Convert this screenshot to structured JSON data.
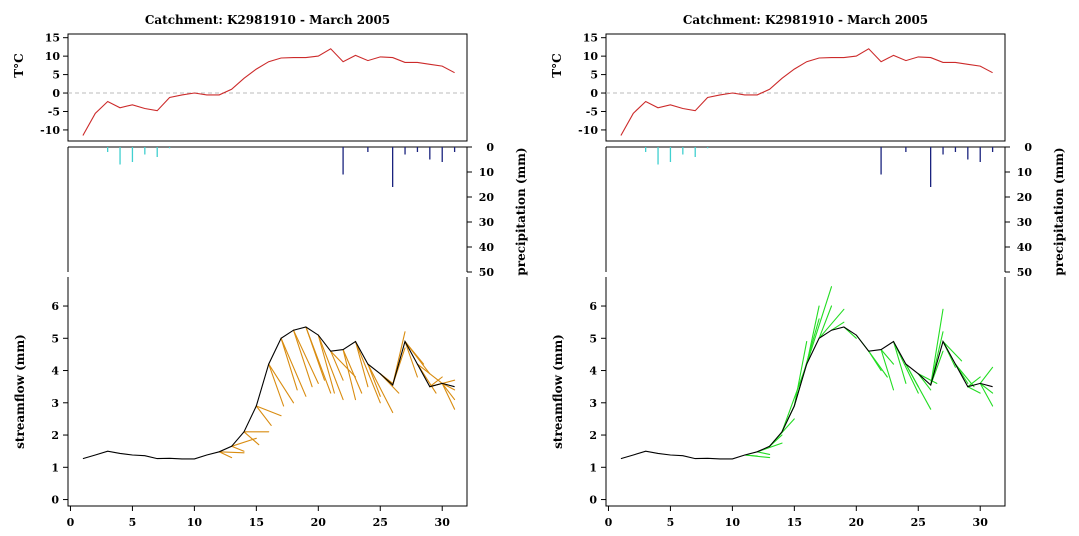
{
  "colors": {
    "temperature": "#cc2a2a",
    "zero_line": "#bbbbbb",
    "snow": "#40d0d0",
    "rain": "#1a237e",
    "observed": "#000000",
    "forecast_left": "#d98c10",
    "forecast_right": "#22dd22"
  },
  "chart_data": [
    {
      "type": "line",
      "title": "Catchment: K2981910 - March 2005",
      "panels": {
        "temperature": {
          "ylabel": "T°C",
          "ylim": [
            -13,
            16
          ],
          "yticks": [
            15,
            10,
            5,
            0,
            -5,
            -10
          ],
          "x": [
            1,
            2,
            3,
            4,
            5,
            6,
            7,
            8,
            9,
            10,
            11,
            12,
            13,
            14,
            15,
            16,
            17,
            18,
            19,
            20,
            21,
            22,
            23,
            24,
            25,
            26,
            27,
            28,
            29,
            30,
            31
          ],
          "values": [
            -11.5,
            -5.5,
            -2.3,
            -4,
            -3.2,
            -4.2,
            -4.8,
            -1.2,
            -0.5,
            0,
            -0.5,
            -0.5,
            1,
            4,
            6.5,
            8.5,
            9.5,
            9.6,
            9.6,
            10,
            12,
            8.5,
            10.2,
            8.8,
            9.8,
            9.6,
            8.3,
            8.3,
            7.8,
            7.3,
            5.5
          ]
        },
        "precipitation": {
          "ylabel": "precipitation (mm)",
          "ylim": [
            0,
            50
          ],
          "yticks": [
            0,
            10,
            20,
            30,
            40,
            50
          ],
          "snow": [
            {
              "x": 3,
              "v": 2
            },
            {
              "x": 4,
              "v": 7
            },
            {
              "x": 5,
              "v": 6
            },
            {
              "x": 6,
              "v": 3
            },
            {
              "x": 7,
              "v": 4
            },
            {
              "x": 8,
              "v": 0.5
            }
          ],
          "rain": [
            {
              "x": 22,
              "v": 11
            },
            {
              "x": 24,
              "v": 2
            },
            {
              "x": 26,
              "v": 16
            },
            {
              "x": 27,
              "v": 3
            },
            {
              "x": 28,
              "v": 2
            },
            {
              "x": 29,
              "v": 5
            },
            {
              "x": 30,
              "v": 6
            },
            {
              "x": 31,
              "v": 2
            }
          ]
        },
        "streamflow": {
          "ylabel": "streamflow (mm)",
          "ylim": [
            -0.2,
            6.9
          ],
          "yticks": [
            0,
            1,
            2,
            3,
            4,
            5,
            6
          ],
          "x": [
            1,
            2,
            3,
            4,
            5,
            6,
            7,
            8,
            9,
            10,
            11,
            12,
            13,
            14,
            15,
            16,
            17,
            18,
            19,
            20,
            21,
            22,
            23,
            24,
            25,
            26,
            27,
            28,
            29,
            30,
            31
          ],
          "observed": [
            1.27,
            1.38,
            1.5,
            1.43,
            1.38,
            1.36,
            1.27,
            1.28,
            1.26,
            1.26,
            1.38,
            1.48,
            1.65,
            2.1,
            2.9,
            4.2,
            5,
            5.25,
            5.35,
            5.1,
            4.6,
            4.65,
            4.9,
            4.2,
            3.9,
            3.55,
            4.9,
            4.2,
            3.5,
            3.6,
            3.5
          ],
          "forecasts": [
            {
              "x0": 12,
              "y0": 1.48,
              "x1": 13,
              "y1": 1.3
            },
            {
              "x0": 12,
              "y0": 1.48,
              "x1": 14,
              "y1": 1.45
            },
            {
              "x0": 13,
              "y0": 1.65,
              "x1": 14,
              "y1": 1.5
            },
            {
              "x0": 13,
              "y0": 1.65,
              "x1": 15,
              "y1": 1.9
            },
            {
              "x0": 14,
              "y0": 2.1,
              "x1": 15.2,
              "y1": 1.7
            },
            {
              "x0": 14,
              "y0": 2.1,
              "x1": 16,
              "y1": 2.1
            },
            {
              "x0": 15,
              "y0": 2.9,
              "x1": 16.2,
              "y1": 2.3
            },
            {
              "x0": 15,
              "y0": 2.9,
              "x1": 17,
              "y1": 2.6
            },
            {
              "x0": 16,
              "y0": 4.2,
              "x1": 17.2,
              "y1": 2.9
            },
            {
              "x0": 16,
              "y0": 4.2,
              "x1": 18,
              "y1": 3
            },
            {
              "x0": 17,
              "y0": 5,
              "x1": 18.3,
              "y1": 3.4
            },
            {
              "x0": 17,
              "y0": 5,
              "x1": 19,
              "y1": 3.2
            },
            {
              "x0": 18,
              "y0": 5.25,
              "x1": 19.5,
              "y1": 3.5
            },
            {
              "x0": 18,
              "y0": 5.25,
              "x1": 20,
              "y1": 3.6
            },
            {
              "x0": 19,
              "y0": 5.35,
              "x1": 20.5,
              "y1": 3.7
            },
            {
              "x0": 19,
              "y0": 5.35,
              "x1": 21,
              "y1": 3.3
            },
            {
              "x0": 20,
              "y0": 5.1,
              "x1": 21.3,
              "y1": 3.3
            },
            {
              "x0": 20,
              "y0": 5.1,
              "x1": 22,
              "y1": 3.1
            },
            {
              "x0": 21,
              "y0": 4.6,
              "x1": 22,
              "y1": 3.7
            },
            {
              "x0": 21,
              "y0": 4.6,
              "x1": 23,
              "y1": 3.8
            },
            {
              "x0": 22,
              "y0": 4.65,
              "x1": 23,
              "y1": 3.1
            },
            {
              "x0": 22,
              "y0": 4.65,
              "x1": 23.5,
              "y1": 3.3
            },
            {
              "x0": 23,
              "y0": 4.9,
              "x1": 24,
              "y1": 3.5
            },
            {
              "x0": 23,
              "y0": 4.9,
              "x1": 25,
              "y1": 3
            },
            {
              "x0": 24,
              "y0": 4.2,
              "x1": 25,
              "y1": 3.2
            },
            {
              "x0": 24,
              "y0": 4.2,
              "x1": 26,
              "y1": 2.7
            },
            {
              "x0": 25,
              "y0": 3.9,
              "x1": 26,
              "y1": 3.6
            },
            {
              "x0": 25,
              "y0": 3.9,
              "x1": 26.5,
              "y1": 3.3
            },
            {
              "x0": 26,
              "y0": 3.55,
              "x1": 27,
              "y1": 5.2
            },
            {
              "x0": 26,
              "y0": 3.55,
              "x1": 27,
              "y1": 4.7
            },
            {
              "x0": 27,
              "y0": 4.9,
              "x1": 28,
              "y1": 3.8
            },
            {
              "x0": 27,
              "y0": 4.9,
              "x1": 29,
              "y1": 3.9
            },
            {
              "x0": 27,
              "y0": 4.9,
              "x1": 28.5,
              "y1": 4.2
            },
            {
              "x0": 28,
              "y0": 4.2,
              "x1": 29.5,
              "y1": 3.3
            },
            {
              "x0": 28,
              "y0": 4.2,
              "x1": 30,
              "y1": 3.6
            },
            {
              "x0": 29,
              "y0": 3.5,
              "x1": 30,
              "y1": 3.8
            },
            {
              "x0": 29,
              "y0": 3.5,
              "x1": 31,
              "y1": 3.7
            },
            {
              "x0": 30,
              "y0": 3.6,
              "x1": 31,
              "y1": 3.1
            },
            {
              "x0": 30,
              "y0": 3.6,
              "x1": 31,
              "y1": 2.8
            },
            {
              "x0": 30,
              "y0": 3.6,
              "x1": 31,
              "y1": 3.4
            }
          ]
        }
      },
      "xticks": [
        0,
        5,
        10,
        15,
        20,
        25,
        30
      ],
      "xlim": [
        -0.2,
        32
      ]
    },
    {
      "type": "line",
      "title": "Catchment: K2981910 - March 2005",
      "panels": {
        "temperature": {
          "ylabel": "T°C",
          "ylim": [
            -13,
            16
          ],
          "yticks": [
            15,
            10,
            5,
            0,
            -5,
            -10
          ],
          "x": [
            1,
            2,
            3,
            4,
            5,
            6,
            7,
            8,
            9,
            10,
            11,
            12,
            13,
            14,
            15,
            16,
            17,
            18,
            19,
            20,
            21,
            22,
            23,
            24,
            25,
            26,
            27,
            28,
            29,
            30,
            31
          ],
          "values": [
            -11.5,
            -5.5,
            -2.3,
            -4,
            -3.2,
            -4.2,
            -4.8,
            -1.2,
            -0.5,
            0,
            -0.5,
            -0.5,
            1,
            4,
            6.5,
            8.5,
            9.5,
            9.6,
            9.6,
            10,
            12,
            8.5,
            10.2,
            8.8,
            9.8,
            9.6,
            8.3,
            8.3,
            7.8,
            7.3,
            5.5
          ]
        },
        "precipitation": {
          "ylabel": "precipitation (mm)",
          "ylim": [
            0,
            50
          ],
          "yticks": [
            0,
            10,
            20,
            30,
            40,
            50
          ],
          "snow": [
            {
              "x": 3,
              "v": 2
            },
            {
              "x": 4,
              "v": 7
            },
            {
              "x": 5,
              "v": 6
            },
            {
              "x": 6,
              "v": 3
            },
            {
              "x": 7,
              "v": 4
            },
            {
              "x": 8,
              "v": 0.5
            }
          ],
          "rain": [
            {
              "x": 22,
              "v": 11
            },
            {
              "x": 24,
              "v": 2
            },
            {
              "x": 26,
              "v": 16
            },
            {
              "x": 27,
              "v": 3
            },
            {
              "x": 28,
              "v": 2
            },
            {
              "x": 29,
              "v": 5
            },
            {
              "x": 30,
              "v": 6
            },
            {
              "x": 31,
              "v": 2
            }
          ]
        },
        "streamflow": {
          "ylabel": "streamflow (mm)",
          "ylim": [
            -0.2,
            6.9
          ],
          "yticks": [
            0,
            1,
            2,
            3,
            4,
            5,
            6
          ],
          "x": [
            1,
            2,
            3,
            4,
            5,
            6,
            7,
            8,
            9,
            10,
            11,
            12,
            13,
            14,
            15,
            16,
            17,
            18,
            19,
            20,
            21,
            22,
            23,
            24,
            25,
            26,
            27,
            28,
            29,
            30,
            31
          ],
          "observed": [
            1.27,
            1.38,
            1.5,
            1.43,
            1.38,
            1.36,
            1.27,
            1.28,
            1.26,
            1.26,
            1.38,
            1.48,
            1.65,
            2.1,
            2.9,
            4.2,
            5,
            5.25,
            5.35,
            5.1,
            4.6,
            4.65,
            4.9,
            4.2,
            3.9,
            3.55,
            4.9,
            4.2,
            3.5,
            3.6,
            3.5
          ],
          "forecasts": [
            {
              "x0": 11,
              "y0": 1.38,
              "x1": 12,
              "y1": 1.35
            },
            {
              "x0": 11,
              "y0": 1.38,
              "x1": 13,
              "y1": 1.3
            },
            {
              "x0": 12,
              "y0": 1.48,
              "x1": 13,
              "y1": 1.4
            },
            {
              "x0": 12,
              "y0": 1.48,
              "x1": 14,
              "y1": 1.75
            },
            {
              "x0": 13,
              "y0": 1.65,
              "x1": 14,
              "y1": 2
            },
            {
              "x0": 13,
              "y0": 1.65,
              "x1": 15,
              "y1": 2.5
            },
            {
              "x0": 14,
              "y0": 2.1,
              "x1": 15,
              "y1": 2.9
            },
            {
              "x0": 14,
              "y0": 2.1,
              "x1": 16,
              "y1": 4.2
            },
            {
              "x0": 15,
              "y0": 2.9,
              "x1": 16,
              "y1": 4.9
            },
            {
              "x0": 15,
              "y0": 2.9,
              "x1": 17,
              "y1": 5.6
            },
            {
              "x0": 16,
              "y0": 4.2,
              "x1": 17,
              "y1": 6
            },
            {
              "x0": 16,
              "y0": 4.2,
              "x1": 18,
              "y1": 6.6
            },
            {
              "x0": 17,
              "y0": 5,
              "x1": 18,
              "y1": 6
            },
            {
              "x0": 17,
              "y0": 5,
              "x1": 19,
              "y1": 5.9
            },
            {
              "x0": 18,
              "y0": 5.25,
              "x1": 19,
              "y1": 5.5
            },
            {
              "x0": 19,
              "y0": 5.35,
              "x1": 20,
              "y1": 5
            },
            {
              "x0": 20,
              "y0": 5.1,
              "x1": 21,
              "y1": 4.6
            },
            {
              "x0": 21,
              "y0": 4.6,
              "x1": 22,
              "y1": 4
            },
            {
              "x0": 21,
              "y0": 4.6,
              "x1": 22.5,
              "y1": 3.8
            },
            {
              "x0": 22,
              "y0": 4.65,
              "x1": 23,
              "y1": 3.4
            },
            {
              "x0": 22,
              "y0": 4.65,
              "x1": 23,
              "y1": 4.2
            },
            {
              "x0": 23,
              "y0": 4.9,
              "x1": 24,
              "y1": 3.6
            },
            {
              "x0": 23,
              "y0": 4.9,
              "x1": 25,
              "y1": 3.3
            },
            {
              "x0": 24,
              "y0": 4.2,
              "x1": 25,
              "y1": 3.5
            },
            {
              "x0": 24,
              "y0": 4.2,
              "x1": 26,
              "y1": 2.8
            },
            {
              "x0": 25,
              "y0": 3.9,
              "x1": 26,
              "y1": 3.4
            },
            {
              "x0": 25,
              "y0": 3.9,
              "x1": 26.5,
              "y1": 3.6
            },
            {
              "x0": 26,
              "y0": 3.55,
              "x1": 27,
              "y1": 5.9
            },
            {
              "x0": 26,
              "y0": 3.55,
              "x1": 27,
              "y1": 5.2
            },
            {
              "x0": 26,
              "y0": 3.55,
              "x1": 27,
              "y1": 4.6
            },
            {
              "x0": 27,
              "y0": 4.9,
              "x1": 28,
              "y1": 4.1
            },
            {
              "x0": 27,
              "y0": 4.9,
              "x1": 28.5,
              "y1": 4.3
            },
            {
              "x0": 28,
              "y0": 4.2,
              "x1": 29,
              "y1": 3.6
            },
            {
              "x0": 28,
              "y0": 4.2,
              "x1": 29.5,
              "y1": 3.5
            },
            {
              "x0": 29,
              "y0": 3.5,
              "x1": 30,
              "y1": 3.8
            },
            {
              "x0": 29,
              "y0": 3.5,
              "x1": 30,
              "y1": 3.3
            },
            {
              "x0": 30,
              "y0": 3.6,
              "x1": 31,
              "y1": 4.1
            },
            {
              "x0": 30,
              "y0": 3.6,
              "x1": 31,
              "y1": 2.9
            },
            {
              "x0": 30,
              "y0": 3.6,
              "x1": 31,
              "y1": 3.3
            }
          ]
        }
      },
      "xticks": [
        0,
        5,
        10,
        15,
        20,
        25,
        30
      ],
      "xlim": [
        -0.2,
        32
      ]
    }
  ]
}
